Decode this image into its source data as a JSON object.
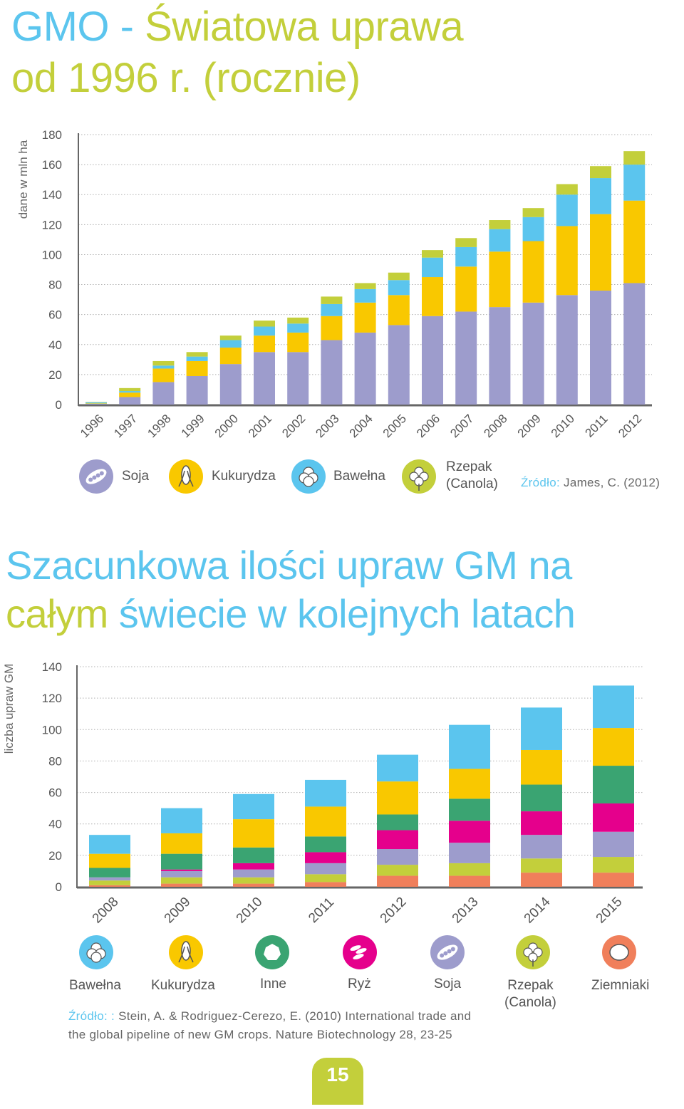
{
  "header": {
    "title_a": "GMO - ",
    "title_b": "Światowa uprawa",
    "title_c": "od 1996 r. (rocznie)"
  },
  "colors": {
    "blue": "#5bc5ee",
    "green": "#c3cf3b",
    "soja": "#9d9ccc",
    "kukurydza": "#f9c800",
    "bawelna": "#5bc5ee",
    "rzepak": "#c3cf3b",
    "inne": "#3aa472",
    "ryz": "#e5008c",
    "ziemniaki": "#f07f5b"
  },
  "chart_data": [
    {
      "type": "bar",
      "stacked": true,
      "ylabel": "dane w mln ha",
      "ylim": [
        0,
        180
      ],
      "yticks": [
        0,
        20,
        40,
        60,
        80,
        100,
        120,
        140,
        160,
        180
      ],
      "grid": true,
      "categories": [
        "1996",
        "1997",
        "1998",
        "1999",
        "2000",
        "2001",
        "2002",
        "2003",
        "2004",
        "2005",
        "2006",
        "2007",
        "2008",
        "2009",
        "2010",
        "2011",
        "2012"
      ],
      "series": [
        {
          "name": "Soja",
          "color": "#9d9ccc",
          "values": [
            0.5,
            5,
            15,
            19,
            27,
            35,
            35,
            43,
            48,
            53,
            59,
            62,
            65,
            68,
            73,
            76,
            81
          ]
        },
        {
          "name": "Kukurydza",
          "color": "#f9c800",
          "values": [
            0.3,
            3,
            9,
            10,
            11,
            11,
            13,
            16,
            20,
            20,
            26,
            30,
            37,
            41,
            46,
            51,
            55
          ]
        },
        {
          "name": "Bawełna",
          "color": "#5bc5ee",
          "values": [
            0.8,
            1,
            2,
            3,
            5,
            6,
            6,
            8,
            9,
            10,
            13,
            13,
            15,
            16,
            21,
            24,
            24
          ]
        },
        {
          "name": "Rzepak (Canola)",
          "color": "#c3cf3b",
          "values": [
            0.1,
            2,
            3,
            3,
            3,
            4,
            4,
            5,
            4,
            5,
            5,
            6,
            6,
            6,
            7,
            8,
            9
          ]
        }
      ],
      "legend": [
        {
          "label": "Soja",
          "icon": "soybean-icon"
        },
        {
          "label": "Kukurydza",
          "icon": "corn-icon"
        },
        {
          "label": "Bawełna",
          "icon": "cotton-icon"
        },
        {
          "label": "Rzepak\n(Canola)",
          "icon": "canola-flower-icon"
        }
      ],
      "source_key": "Źródło:",
      "source_text": " James, C. (2012)"
    },
    {
      "type": "bar",
      "stacked": true,
      "title_a": "Szacunkowa ilości upraw GM na",
      "title_b": "całym ",
      "title_c": "świecie w kolejnych latach",
      "ylabel": "liczba upraw GM",
      "ylim": [
        0,
        140
      ],
      "yticks": [
        0,
        20,
        40,
        60,
        80,
        100,
        120,
        140
      ],
      "grid": true,
      "categories": [
        "2008",
        "2009",
        "2010",
        "2011",
        "2012",
        "2013",
        "2014",
        "2015"
      ],
      "series": [
        {
          "name": "Ziemniaki",
          "color": "#f07f5b",
          "values": [
            1,
            2,
            2,
            3,
            7,
            7,
            9,
            9
          ]
        },
        {
          "name": "Rzepak (Canola)",
          "color": "#c3cf3b",
          "values": [
            3,
            4,
            4,
            5,
            7,
            8,
            9,
            10
          ]
        },
        {
          "name": "Soja",
          "color": "#9d9ccc",
          "values": [
            2,
            4,
            5,
            7,
            10,
            13,
            15,
            16
          ]
        },
        {
          "name": "Ryż",
          "color": "#e5008c",
          "values": [
            0,
            1,
            4,
            7,
            12,
            14,
            15,
            18
          ]
        },
        {
          "name": "Inne",
          "color": "#3aa472",
          "values": [
            6,
            10,
            10,
            10,
            10,
            14,
            17,
            24
          ]
        },
        {
          "name": "Kukurydza",
          "color": "#f9c800",
          "values": [
            9,
            13,
            18,
            19,
            21,
            19,
            22,
            24
          ]
        },
        {
          "name": "Bawełna",
          "color": "#5bc5ee",
          "values": [
            12,
            16,
            16,
            17,
            17,
            28,
            27,
            27
          ]
        }
      ],
      "legend": [
        {
          "label": "Bawełna",
          "icon": "cotton-icon"
        },
        {
          "label": "Kukurydza",
          "icon": "corn-icon"
        },
        {
          "label": "Inne",
          "icon": "other-icon"
        },
        {
          "label": "Ryż",
          "icon": "rice-icon"
        },
        {
          "label": "Soja",
          "icon": "soybean-icon"
        },
        {
          "label": "Rzepak\n(Canola)",
          "icon": "canola-flower-icon"
        },
        {
          "label": "Ziemniaki",
          "icon": "potato-icon"
        }
      ],
      "source_key": "Źródło: :",
      "source_line1": " Stein, A. & Rodriguez-Cerezo, E. (2010) International trade and",
      "source_line2": "the global pipeline of new GM crops. Nature Biotechnology 28, 23-25"
    }
  ],
  "footer": {
    "page_number": "15"
  }
}
